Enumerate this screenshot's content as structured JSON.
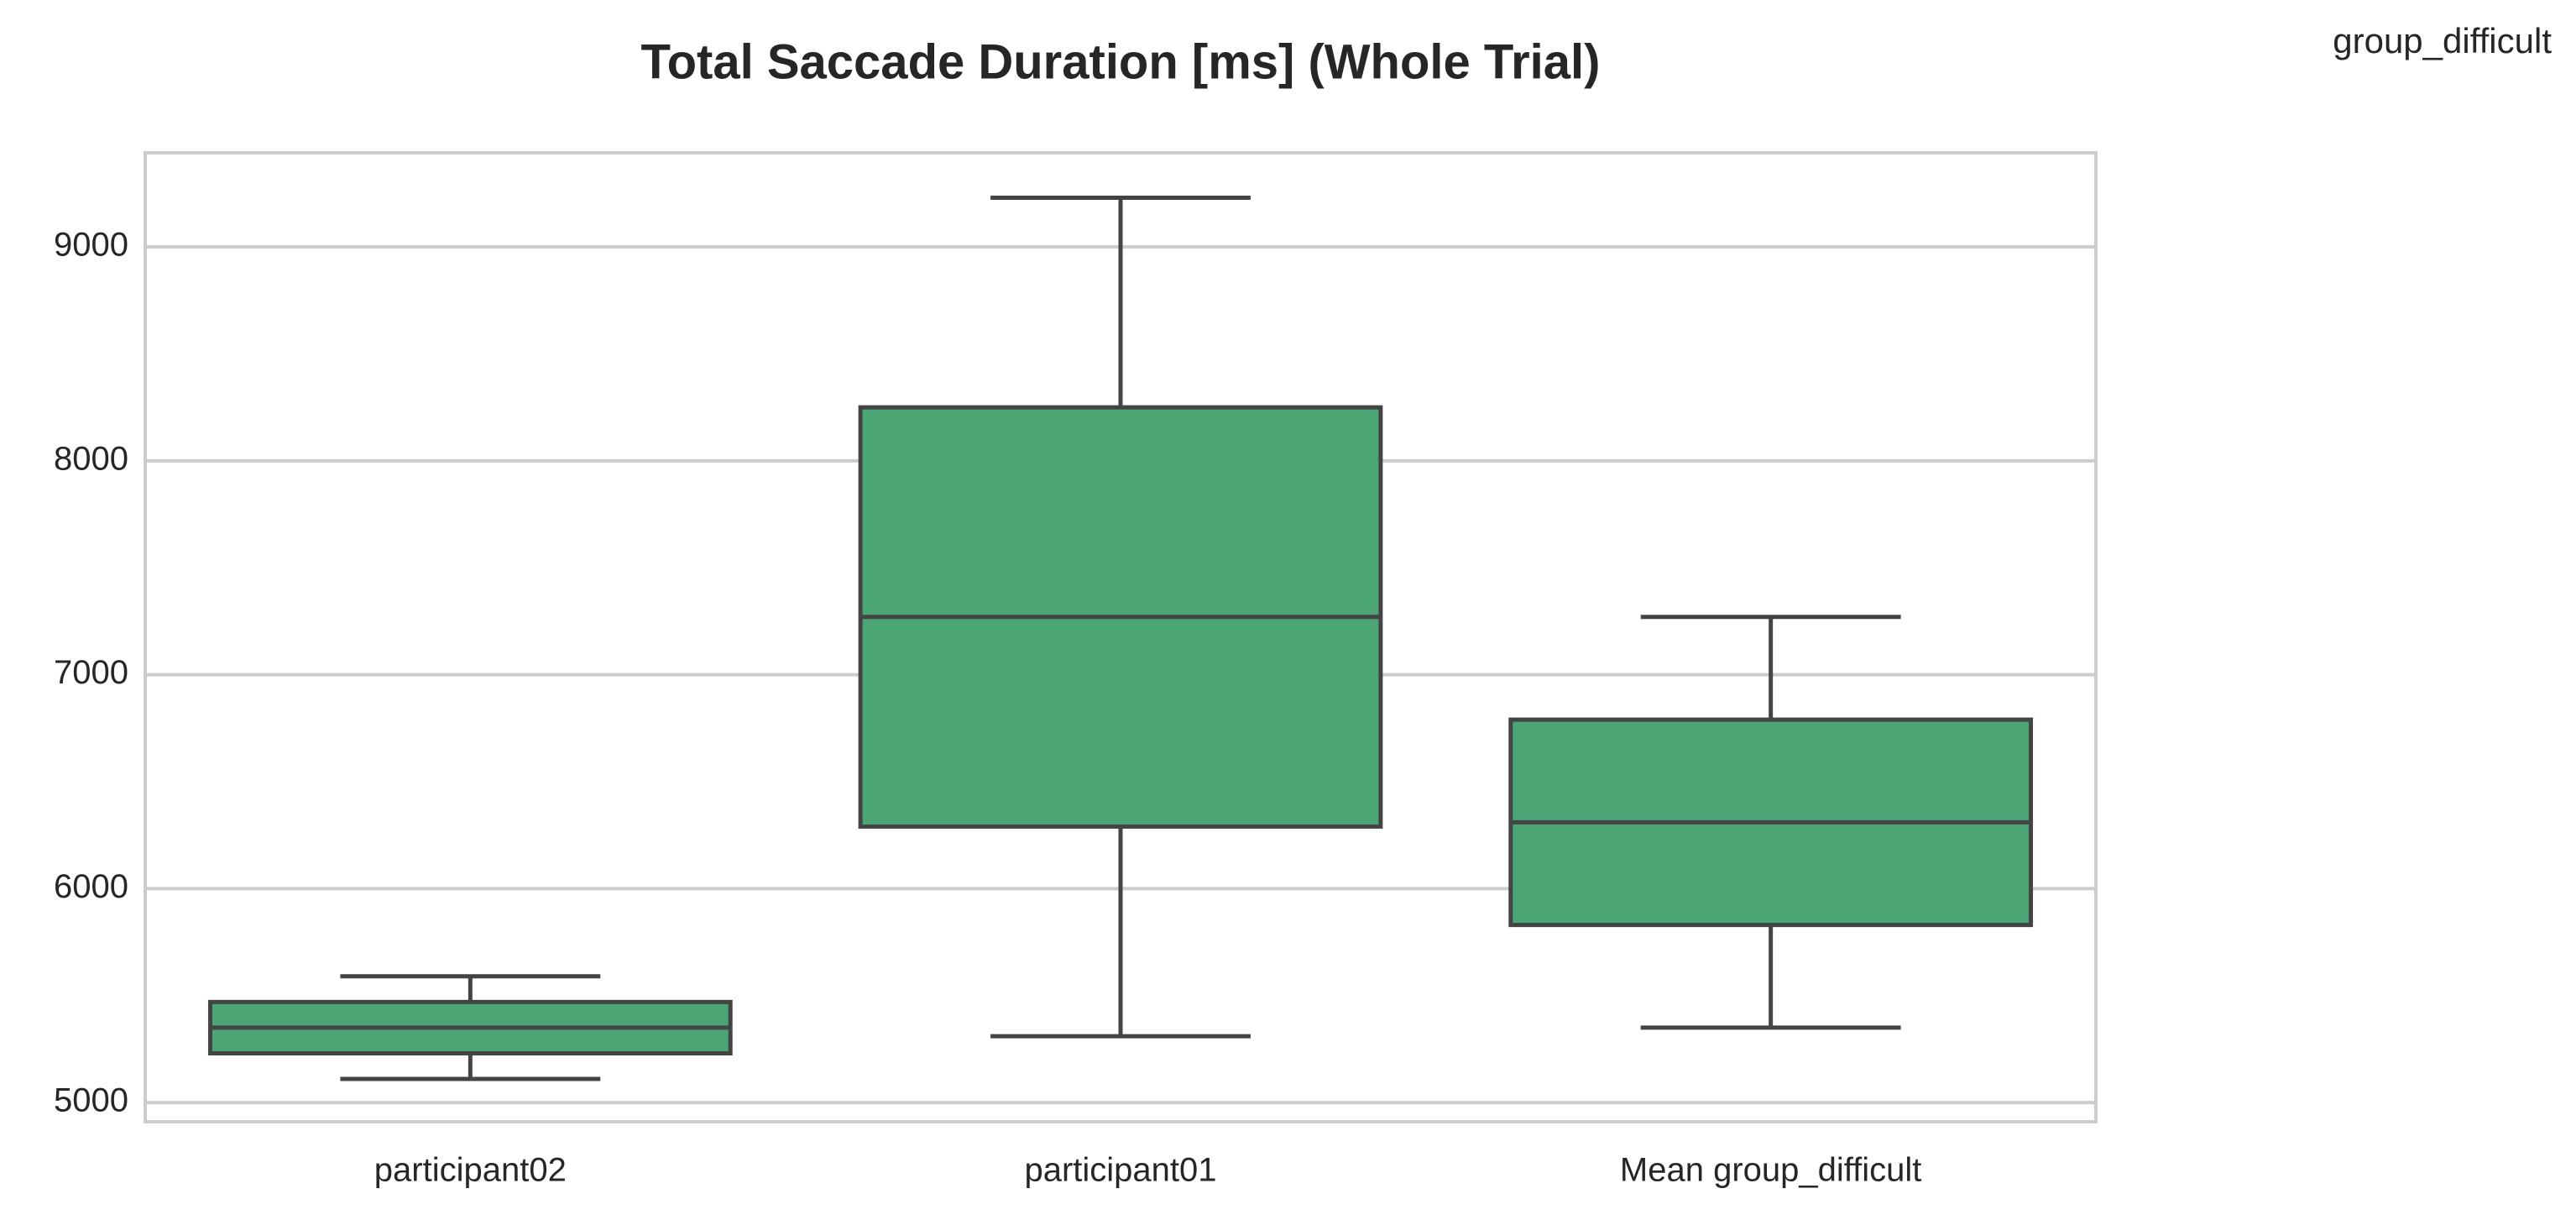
{
  "chart_data": {
    "type": "box",
    "title": "Total Saccade Duration [ms] (Whole Trial)",
    "group_label": "group_difficult",
    "xlabel": "",
    "ylabel": "",
    "ylim": [
      4910,
      9440
    ],
    "yticks": [
      5000,
      6000,
      7000,
      8000,
      9000
    ],
    "grid": "horizontal",
    "colors": {
      "box_fill": "#4ba574",
      "line": "#444444",
      "grid": "#cccccc",
      "frame": "#cccccc",
      "text": "#262626"
    },
    "categories": [
      "participant02",
      "participant01",
      "Mean group_difficult"
    ],
    "boxes": [
      {
        "category": "participant02",
        "whisker_low": 5110,
        "q1": 5230,
        "median": 5350,
        "q3": 5470,
        "whisker_high": 5590
      },
      {
        "category": "participant01",
        "whisker_low": 5310,
        "q1": 6290,
        "median": 7270,
        "q3": 8250,
        "whisker_high": 9230
      },
      {
        "category": "Mean group_difficult",
        "whisker_low": 5350,
        "q1": 5830,
        "median": 6310,
        "q3": 6790,
        "whisker_high": 7270
      }
    ]
  }
}
